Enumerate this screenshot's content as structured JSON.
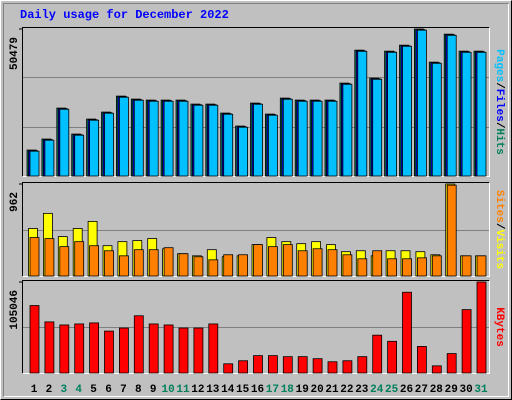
{
  "chart_data": [
    {
      "type": "bar",
      "title": "Daily usage for December 2022",
      "ylim": [
        0,
        50479
      ],
      "yticks": [
        50479
      ],
      "legend_separator": "/",
      "series": [
        {
          "name": "Pages",
          "color": "#00c0ff",
          "values": [
            8518,
            12291,
            22924,
            14006,
            19151,
            21552,
            27040,
            26011,
            25668,
            25668,
            25668,
            24296,
            24296,
            21209,
            16750,
            24639,
            20866,
            26354,
            25668,
            25668,
            25668,
            31499,
            42818,
            33214,
            42475,
            44533,
            50079,
            38702,
            48306,
            42475,
            42475
          ]
        },
        {
          "name": "Files",
          "color": "#0000ff",
          "values": [
            8718,
            12491,
            23124,
            14206,
            19351,
            21752,
            27240,
            26211,
            25868,
            25868,
            25868,
            24496,
            24496,
            21409,
            16950,
            24839,
            21066,
            26554,
            25868,
            25868,
            25868,
            31699,
            43018,
            33414,
            42675,
            44733,
            50279,
            38902,
            48506,
            42675,
            42675
          ]
        },
        {
          "name": "Hits",
          "color": "#00805c",
          "values": [
            8918,
            12691,
            23324,
            14406,
            19551,
            21952,
            27440,
            26411,
            26068,
            26068,
            26068,
            24696,
            24696,
            21609,
            17150,
            25039,
            21266,
            26754,
            26068,
            26068,
            26068,
            31899,
            43218,
            33614,
            42875,
            44933,
            50479,
            39102,
            48706,
            42875,
            42875
          ]
        }
      ]
    },
    {
      "type": "bar",
      "ylim": [
        0,
        962
      ],
      "yticks": [
        962
      ],
      "legend_separator": "/",
      "series": [
        {
          "name": "Sites",
          "color": "#ff8000",
          "values": [
            402,
            391,
            307,
            359,
            317,
            264,
            211,
            275,
            275,
            296,
            233,
            201,
            169,
            222,
            222,
            328,
            307,
            328,
            264,
            285,
            275,
            222,
            180,
            264,
            180,
            180,
            190,
            211,
            950,
            211,
            211
          ]
        },
        {
          "name": "Visits",
          "color": "#ffff00",
          "values": [
            497,
            655,
            412,
            497,
            571,
            317,
            359,
            370,
            391,
            285,
            233,
            211,
            275,
            201,
            211,
            328,
            402,
            359,
            338,
            359,
            328,
            254,
            264,
            211,
            264,
            264,
            254,
            222,
            962,
            211,
            211
          ]
        }
      ]
    },
    {
      "type": "bar",
      "ylim": [
        0,
        105046
      ],
      "yticks": [
        105046
      ],
      "categories": [
        "1",
        "2",
        "3",
        "4",
        "5",
        "6",
        "7",
        "8",
        "9",
        "10",
        "11",
        "12",
        "13",
        "14",
        "15",
        "16",
        "17",
        "18",
        "19",
        "20",
        "21",
        "22",
        "23",
        "24",
        "25",
        "26",
        "27",
        "28",
        "29",
        "30",
        "31"
      ],
      "category_color": "#000000",
      "weekend_color": "#00805c",
      "weekends": [
        2,
        3,
        9,
        10,
        16,
        17,
        23,
        24,
        30
      ],
      "series": [
        {
          "name": "KBytes",
          "color": "#ff0000",
          "values": [
            77880,
            59000,
            55460,
            56640,
            57820,
            48380,
            51920,
            66080,
            56640,
            55460,
            51920,
            51920,
            56640,
            10620,
            14160,
            20060,
            20060,
            18880,
            18880,
            16520,
            12980,
            14160,
            18880,
            43660,
            36580,
            93220,
            30680,
            8260,
            22420,
            73160,
            105046
          ]
        }
      ]
    }
  ]
}
